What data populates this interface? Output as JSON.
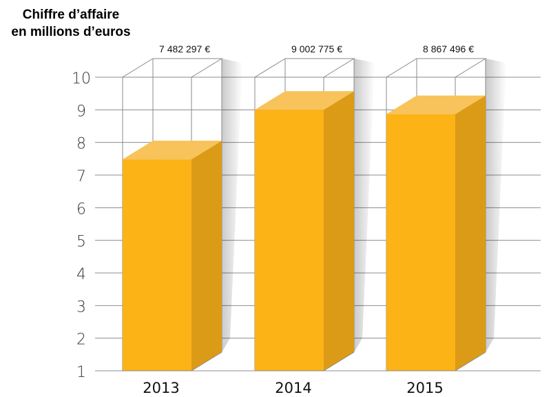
{
  "chart_data": {
    "type": "bar",
    "title_lines": [
      "Chiffre d’affaire",
      "en millions d’euros"
    ],
    "categories": [
      "2013",
      "2014",
      "2015"
    ],
    "values": [
      7.482297,
      9.002775,
      8.867496
    ],
    "data_labels": [
      "7 482 297 €",
      "9 002 775 €",
      "8 867 496 €"
    ],
    "yticks": [
      "1",
      "2",
      "3",
      "4",
      "5",
      "6",
      "7",
      "8",
      "9",
      "10"
    ],
    "ylim": [
      1,
      10
    ],
    "grid": true,
    "colors": {
      "front": "#FBB316",
      "side": "#DC9B16",
      "top": "#F8C35A",
      "grid": "#8c8c8c",
      "frame": "#8a8a8a"
    }
  }
}
